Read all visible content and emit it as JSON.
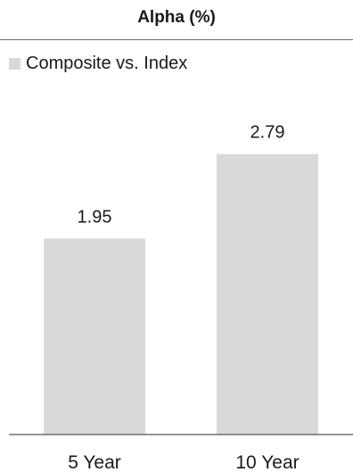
{
  "chart_data": {
    "type": "bar",
    "title": "Alpha (%)",
    "categories": [
      "5 Year",
      "10 Year"
    ],
    "series": [
      {
        "name": "Composite vs. Index",
        "values": [
          1.95,
          2.79
        ],
        "labels": [
          "1.95",
          "2.79"
        ],
        "color": "#d9d9d9"
      }
    ],
    "ylim": [
      0,
      3.4
    ],
    "legend_position": "top-left",
    "grid": false,
    "axis_color": "#555555"
  }
}
